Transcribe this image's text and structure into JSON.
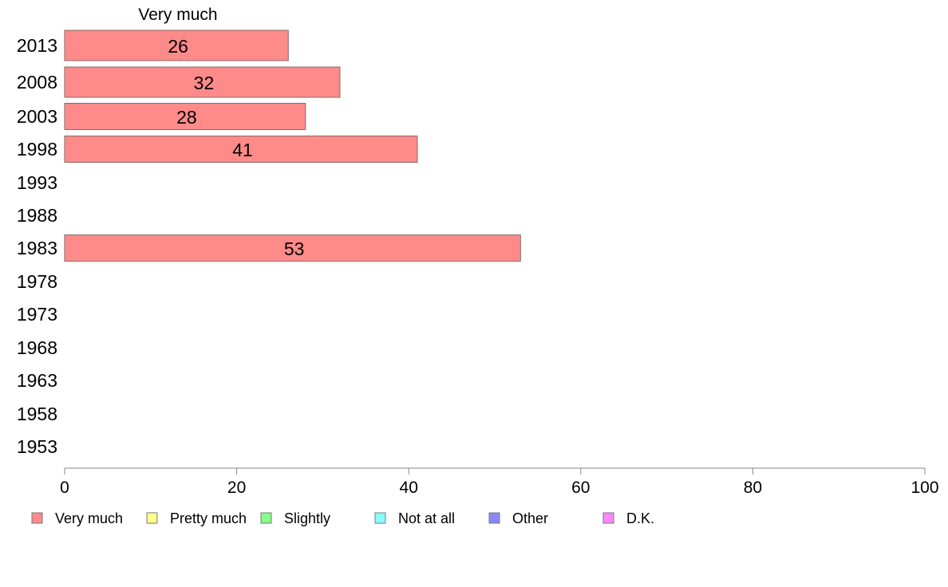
{
  "chart_data": {
    "type": "bar",
    "orientation": "horizontal",
    "title": "Very much",
    "categories": [
      "2013",
      "2008",
      "2003",
      "1998",
      "1993",
      "1988",
      "1983",
      "1978",
      "1973",
      "1968",
      "1963",
      "1958",
      "1953"
    ],
    "series": [
      {
        "name": "Very much",
        "color": "#ff8a8a",
        "values": [
          26,
          32,
          28,
          41,
          null,
          null,
          53,
          null,
          null,
          null,
          null,
          null,
          null
        ]
      }
    ],
    "xlim": [
      0,
      100
    ],
    "xticks": [
      0,
      20,
      40,
      60,
      80,
      100
    ],
    "legend": [
      {
        "label": "Very much",
        "color": "#ff8a8a"
      },
      {
        "label": "Pretty much",
        "color": "#ffff88"
      },
      {
        "label": "Slightly",
        "color": "#88ff88"
      },
      {
        "label": "Not at all",
        "color": "#88ffff"
      },
      {
        "label": "Other",
        "color": "#8888ff"
      },
      {
        "label": "D.K.",
        "color": "#ff88ff"
      }
    ],
    "legend_position": "bottom",
    "grid": false
  }
}
